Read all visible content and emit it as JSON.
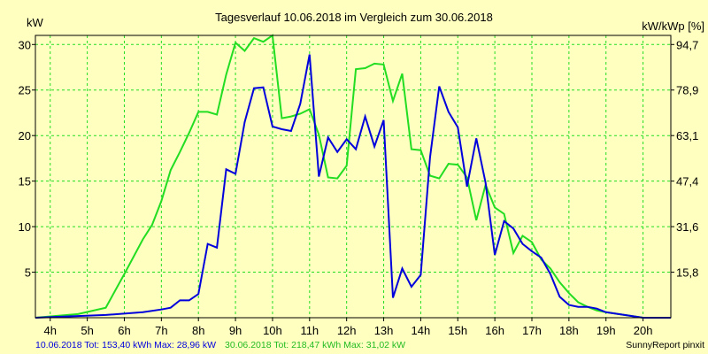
{
  "chart_data": {
    "type": "line",
    "title": "Tagesverlauf 10.06.2018 im Vergleich zum 30.06.2018",
    "ylabel_left": "kW",
    "ylabel_right": "kW/kWp [%]",
    "xlim": [
      3.6,
      20.75
    ],
    "ylim": [
      0,
      31
    ],
    "x_ticks": [
      {
        "v": 4,
        "label": "4h"
      },
      {
        "v": 5,
        "label": "5h"
      },
      {
        "v": 6,
        "label": "6h"
      },
      {
        "v": 7,
        "label": "7h"
      },
      {
        "v": 8,
        "label": "8h"
      },
      {
        "v": 9,
        "label": "9h"
      },
      {
        "v": 10,
        "label": "10h"
      },
      {
        "v": 11,
        "label": "11h"
      },
      {
        "v": 12,
        "label": "12h"
      },
      {
        "v": 13,
        "label": "13h"
      },
      {
        "v": 14,
        "label": "14h"
      },
      {
        "v": 15,
        "label": "15h"
      },
      {
        "v": 16,
        "label": "16h"
      },
      {
        "v": 17,
        "label": "17h"
      },
      {
        "v": 18,
        "label": "18h"
      },
      {
        "v": 19,
        "label": "19h"
      },
      {
        "v": 20,
        "label": "20h"
      }
    ],
    "y_ticks_left": [
      {
        "v": 5,
        "label": "5"
      },
      {
        "v": 10,
        "label": "10"
      },
      {
        "v": 15,
        "label": "15"
      },
      {
        "v": 20,
        "label": "20"
      },
      {
        "v": 25,
        "label": "25"
      },
      {
        "v": 30,
        "label": "30"
      }
    ],
    "y_ticks_right": [
      {
        "v": 5,
        "label": "15,8"
      },
      {
        "v": 10,
        "label": "31,6"
      },
      {
        "v": 15,
        "label": "47,4"
      },
      {
        "v": 20,
        "label": "63,1"
      },
      {
        "v": 25,
        "label": "78,9"
      },
      {
        "v": 30,
        "label": "94,7"
      }
    ],
    "series": [
      {
        "name": "10.06.2018",
        "color": "#0000dd",
        "points": [
          [
            3.6,
            0
          ],
          [
            5.5,
            0.3
          ],
          [
            6.5,
            0.6
          ],
          [
            7.0,
            0.9
          ],
          [
            7.25,
            1.1
          ],
          [
            7.5,
            1.9
          ],
          [
            7.75,
            1.9
          ],
          [
            8.0,
            2.6
          ],
          [
            8.25,
            8.1
          ],
          [
            8.5,
            7.7
          ],
          [
            8.75,
            16.3
          ],
          [
            9.0,
            15.8
          ],
          [
            9.25,
            21.5
          ],
          [
            9.5,
            25.2
          ],
          [
            9.75,
            25.3
          ],
          [
            10.0,
            21.0
          ],
          [
            10.25,
            20.7
          ],
          [
            10.5,
            20.5
          ],
          [
            10.75,
            23.5
          ],
          [
            11.0,
            28.9
          ],
          [
            11.25,
            15.5
          ],
          [
            11.5,
            19.8
          ],
          [
            11.75,
            18.2
          ],
          [
            12.0,
            19.6
          ],
          [
            12.25,
            18.5
          ],
          [
            12.5,
            22.1
          ],
          [
            12.75,
            18.8
          ],
          [
            13.0,
            21.7
          ],
          [
            13.25,
            2.2
          ],
          [
            13.5,
            5.4
          ],
          [
            13.75,
            3.4
          ],
          [
            14.0,
            4.7
          ],
          [
            14.25,
            17.6
          ],
          [
            14.5,
            25.4
          ],
          [
            14.75,
            22.6
          ],
          [
            15.0,
            20.9
          ],
          [
            15.25,
            14.4
          ],
          [
            15.5,
            19.7
          ],
          [
            15.75,
            14.8
          ],
          [
            16.0,
            6.9
          ],
          [
            16.25,
            10.6
          ],
          [
            16.5,
            9.8
          ],
          [
            16.75,
            8.1
          ],
          [
            17.0,
            7.3
          ],
          [
            17.25,
            6.6
          ],
          [
            17.5,
            4.8
          ],
          [
            17.75,
            2.3
          ],
          [
            18.0,
            1.4
          ],
          [
            18.25,
            1.2
          ],
          [
            18.5,
            1.2
          ],
          [
            18.75,
            1.0
          ],
          [
            19.0,
            0.6
          ],
          [
            19.5,
            0.3
          ],
          [
            20.0,
            0
          ],
          [
            20.75,
            0
          ]
        ]
      },
      {
        "name": "30.06.2018",
        "color": "#22dd22",
        "points": [
          [
            3.6,
            0
          ],
          [
            4.75,
            0.4
          ],
          [
            5.5,
            1.1
          ],
          [
            6.0,
            4.8
          ],
          [
            6.5,
            8.6
          ],
          [
            6.75,
            10.2
          ],
          [
            7.0,
            12.8
          ],
          [
            7.25,
            16.2
          ],
          [
            7.5,
            18.2
          ],
          [
            7.75,
            20.3
          ],
          [
            8.0,
            22.6
          ],
          [
            8.25,
            22.6
          ],
          [
            8.5,
            22.3
          ],
          [
            8.75,
            26.7
          ],
          [
            9.0,
            30.2
          ],
          [
            9.25,
            29.3
          ],
          [
            9.5,
            30.7
          ],
          [
            9.75,
            30.3
          ],
          [
            10.0,
            31.0
          ],
          [
            10.25,
            21.9
          ],
          [
            10.5,
            22.1
          ],
          [
            10.75,
            22.4
          ],
          [
            11.0,
            22.9
          ],
          [
            11.25,
            20.1
          ],
          [
            11.5,
            15.4
          ],
          [
            11.75,
            15.3
          ],
          [
            12.0,
            16.7
          ],
          [
            12.25,
            27.3
          ],
          [
            12.5,
            27.4
          ],
          [
            12.75,
            27.9
          ],
          [
            13.0,
            27.8
          ],
          [
            13.25,
            23.8
          ],
          [
            13.5,
            26.8
          ],
          [
            13.75,
            18.5
          ],
          [
            14.0,
            18.4
          ],
          [
            14.25,
            15.6
          ],
          [
            14.5,
            15.3
          ],
          [
            14.75,
            16.9
          ],
          [
            15.0,
            16.8
          ],
          [
            15.25,
            15.4
          ],
          [
            15.5,
            10.7
          ],
          [
            15.75,
            14.6
          ],
          [
            16.0,
            12.1
          ],
          [
            16.25,
            11.4
          ],
          [
            16.5,
            7.1
          ],
          [
            16.75,
            9.0
          ],
          [
            17.0,
            8.3
          ],
          [
            17.25,
            6.4
          ],
          [
            17.5,
            5.4
          ],
          [
            17.75,
            3.9
          ],
          [
            18.0,
            2.7
          ],
          [
            18.25,
            1.7
          ],
          [
            18.5,
            1.2
          ],
          [
            18.75,
            0.8
          ],
          [
            19.0,
            0.6
          ],
          [
            19.5,
            0.3
          ],
          [
            20.0,
            0
          ],
          [
            20.75,
            0
          ]
        ]
      }
    ]
  },
  "footer": {
    "series1_text": "10.06.2018 Tot: 153,40 kWh Max: 28,96 kW",
    "series2_text": "30.06.2018 Tot: 218,47 kWh Max: 31,02 kW",
    "branding": "SunnyReport pinxit"
  }
}
